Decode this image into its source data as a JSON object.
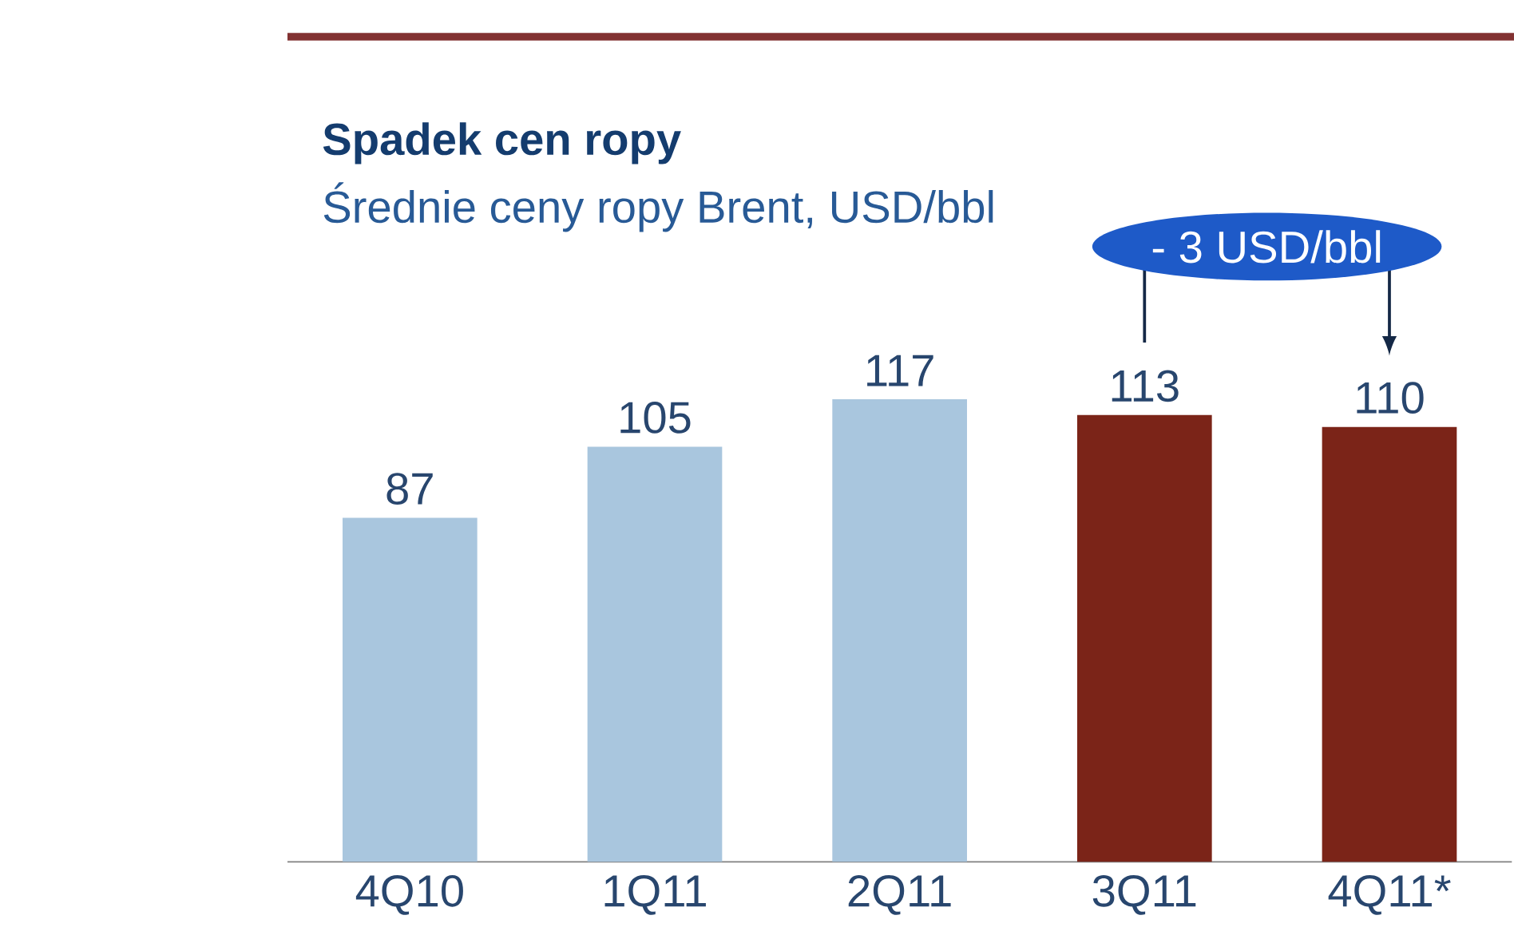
{
  "chart_data": {
    "type": "bar",
    "title": "Spadek cen ropy",
    "subtitle": "Średnie ceny ropy Brent, USD/bbl",
    "categories": [
      "4Q10",
      "1Q11",
      "2Q11",
      "3Q11",
      "4Q11*"
    ],
    "values": [
      87,
      105,
      117,
      113,
      110
    ],
    "colors": [
      "#a9c6de",
      "#a9c6de",
      "#a9c6de",
      "#7b2418",
      "#7b2418"
    ],
    "data_labels": true,
    "annotations": [
      "- 3 USD/bbl"
    ]
  }
}
